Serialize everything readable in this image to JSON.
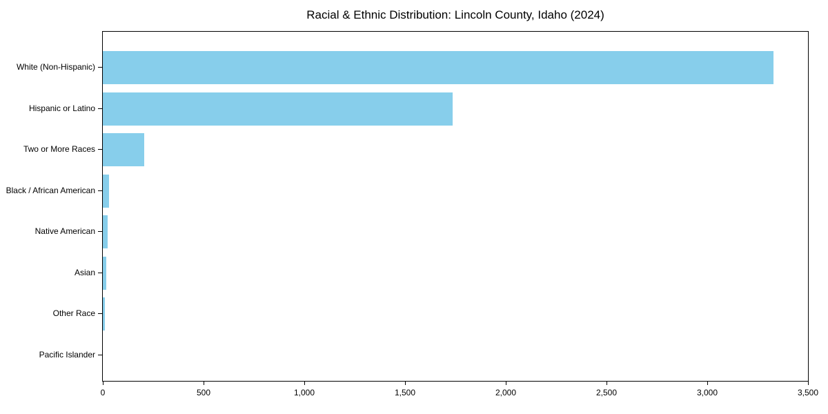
{
  "chart_data": {
    "type": "bar",
    "orientation": "horizontal",
    "title": "Racial & Ethnic Distribution: Lincoln County, Idaho (2024)",
    "categories": [
      "White (Non-Hispanic)",
      "Hispanic or Latino",
      "Two or More Races",
      "Black / African American",
      "Native American",
      "Asian",
      "Other Race",
      "Pacific Islander"
    ],
    "values": [
      3330,
      1735,
      205,
      32,
      25,
      17,
      10,
      0
    ],
    "xlabel": "",
    "ylabel": "",
    "xlim": [
      0,
      3500
    ],
    "x_ticks": [
      0,
      500,
      1000,
      1500,
      2000,
      2500,
      3000,
      3500
    ],
    "x_tick_labels": [
      "0",
      "500",
      "1,000",
      "1,500",
      "2,000",
      "2,500",
      "3,000",
      "3,500"
    ],
    "bar_color": "#87CEEB",
    "grid": false,
    "legend": false,
    "plot_border_color": "#000000",
    "background_color": "#ffffff"
  }
}
